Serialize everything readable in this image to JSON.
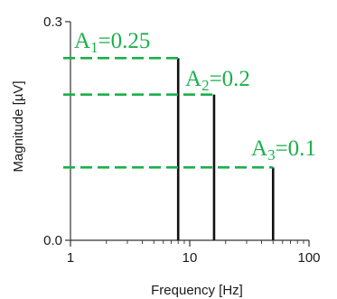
{
  "chart_data": {
    "type": "bar",
    "xlabel": "Frequency [Hz]",
    "ylabel": "Magnitude [µV]",
    "x_scale": "log",
    "xlim": [
      1,
      100
    ],
    "ylim": [
      0,
      0.3
    ],
    "x_ticks": [
      {
        "value": 1,
        "label": "1"
      },
      {
        "value": 10,
        "label": "10"
      },
      {
        "value": 100,
        "label": "100"
      }
    ],
    "y_ticks": [
      {
        "value": 0,
        "label": "0.0"
      },
      {
        "value": 0.3,
        "label": "0.3"
      }
    ],
    "y_minor_ticks": [
      0.1,
      0.2
    ],
    "series": [
      {
        "x": [
          8,
          16,
          50
        ],
        "values": [
          0.25,
          0.2,
          0.1
        ]
      }
    ],
    "annotations": [
      {
        "letter": "A",
        "index": "1",
        "value_text": "=0.25",
        "value": 0.25,
        "x": 8
      },
      {
        "letter": "A",
        "index": "2",
        "value_text": "=0.2",
        "value": 0.2,
        "x": 16
      },
      {
        "letter": "A",
        "index": "3",
        "value_text": "=0.1",
        "value": 0.1,
        "x": 50
      }
    ],
    "colors": {
      "bars": "#111111",
      "annotation": "#1bb04a",
      "axes": "#333333"
    }
  }
}
